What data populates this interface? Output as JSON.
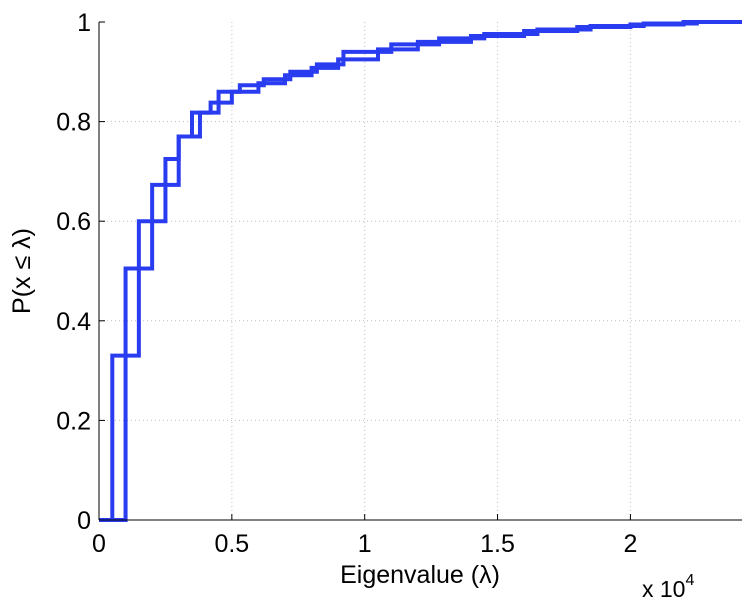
{
  "chart_data": {
    "type": "line",
    "step": true,
    "xlabel": "Eigenvalue (λ)",
    "ylabel": "P(x ≤ λ)",
    "x_multiplier_label": {
      "base": "x 10",
      "exponent": "4"
    },
    "x_scale": 10000,
    "xlim": [
      0,
      24200
    ],
    "ylim": [
      0,
      1
    ],
    "xticks": [
      0,
      5000,
      10000,
      15000,
      20000
    ],
    "xtick_labels": [
      "0",
      "0.5",
      "1",
      "1.5",
      "2"
    ],
    "yticks": [
      0,
      0.2,
      0.4,
      0.6,
      0.8,
      1
    ],
    "ytick_labels": [
      "0",
      "0.2",
      "0.4",
      "0.6",
      "0.8",
      "1"
    ],
    "grid": true,
    "line_color": "#2a3cf0",
    "series": [
      {
        "x": [
          0,
          500,
          500,
          1500,
          1500,
          2500,
          2500,
          3000,
          3000,
          3500,
          3500,
          4200,
          4200,
          5000,
          5000,
          6000,
          6000,
          7000,
          7000,
          8000,
          8000,
          9000,
          9000,
          10500,
          10500,
          12000,
          12000,
          14000,
          14000,
          16000,
          16000,
          18000,
          18000,
          20000,
          20000,
          22000,
          22000,
          24200
        ],
        "y": [
          0,
          0,
          0.33,
          0.33,
          0.6,
          0.6,
          0.725,
          0.725,
          0.77,
          0.77,
          0.818,
          0.818,
          0.838,
          0.838,
          0.86,
          0.86,
          0.877,
          0.877,
          0.893,
          0.893,
          0.908,
          0.908,
          0.925,
          0.925,
          0.945,
          0.945,
          0.96,
          0.96,
          0.972,
          0.972,
          0.982,
          0.982,
          0.99,
          0.99,
          0.995,
          0.995,
          1.0,
          1.0
        ]
      },
      {
        "x": [
          0,
          1000,
          1000,
          2000,
          2000,
          3000,
          3000,
          3800,
          3800,
          4500,
          4500,
          5300,
          5300,
          6200,
          6200,
          7200,
          7200,
          8200,
          8200,
          9200,
          9200,
          11000,
          11000,
          12800,
          12800,
          14500,
          14500,
          16500,
          16500,
          18500,
          18500,
          20500,
          20500,
          22500,
          22500,
          24200
        ],
        "y": [
          0,
          0,
          0.505,
          0.505,
          0.673,
          0.673,
          0.77,
          0.77,
          0.818,
          0.818,
          0.86,
          0.86,
          0.873,
          0.873,
          0.885,
          0.885,
          0.9,
          0.9,
          0.915,
          0.915,
          0.94,
          0.94,
          0.955,
          0.955,
          0.967,
          0.967,
          0.976,
          0.976,
          0.985,
          0.985,
          0.992,
          0.992,
          0.997,
          0.997,
          1.0,
          1.0
        ]
      }
    ]
  }
}
